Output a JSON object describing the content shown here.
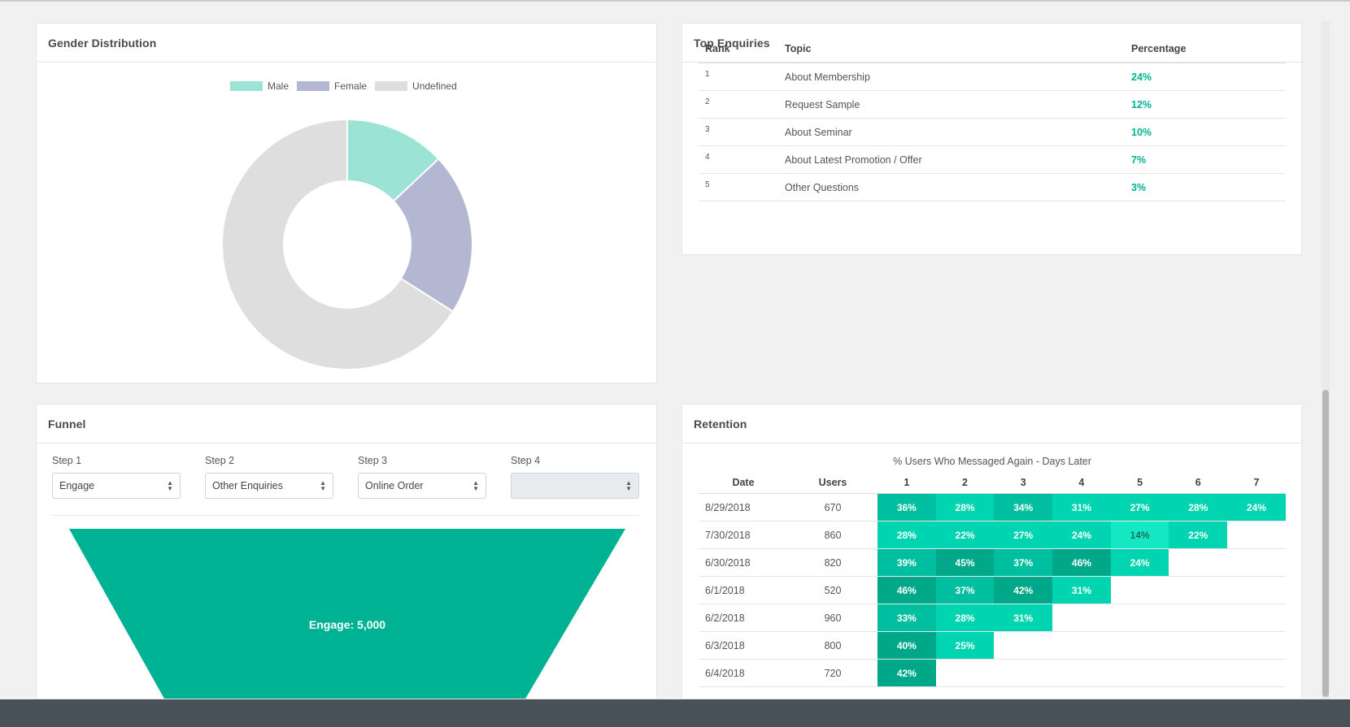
{
  "gender": {
    "title": "Gender Distribution",
    "legend": [
      {
        "label": "Male",
        "color": "#9be3d4"
      },
      {
        "label": "Female",
        "color": "#b3b7d1"
      },
      {
        "label": "Undefined",
        "color": "#dedede"
      }
    ],
    "chart_data": {
      "type": "pie",
      "categories": [
        "Male",
        "Female",
        "Undefined"
      ],
      "values": [
        13,
        21,
        66
      ]
    }
  },
  "enquiries": {
    "title": "Top Enquiries",
    "headers": {
      "rank": "Rank",
      "topic": "Topic",
      "percentage": "Percentage"
    },
    "rows": [
      {
        "rank": "1",
        "topic": "About Membership",
        "percentage": "24%"
      },
      {
        "rank": "2",
        "topic": "Request Sample",
        "percentage": "12%"
      },
      {
        "rank": "3",
        "topic": "About Seminar",
        "percentage": "10%"
      },
      {
        "rank": "4",
        "topic": "About Latest Promotion / Offer",
        "percentage": "7%"
      },
      {
        "rank": "5",
        "topic": "Other Questions",
        "percentage": "3%"
      }
    ]
  },
  "funnel": {
    "title": "Funnel",
    "steps": [
      {
        "label": "Step 1",
        "value": "Engage"
      },
      {
        "label": "Step 2",
        "value": "Other Enquiries"
      },
      {
        "label": "Step 3",
        "value": "Online Order"
      },
      {
        "label": "Step 4",
        "value": ""
      }
    ],
    "stage_label": "Engage: 5,000",
    "color": "#00b294"
  },
  "retention": {
    "title": "Retention",
    "subtitle": "% Users Who Messaged Again - Days Later",
    "headers": {
      "date": "Date",
      "users": "Users",
      "days": [
        "1",
        "2",
        "3",
        "4",
        "5",
        "6",
        "7"
      ]
    },
    "rows": [
      {
        "date": "8/29/2018",
        "users": "670",
        "values": [
          "36%",
          "28%",
          "34%",
          "31%",
          "27%",
          "28%",
          "24%"
        ]
      },
      {
        "date": "7/30/2018",
        "users": "860",
        "values": [
          "28%",
          "22%",
          "27%",
          "24%",
          "14%",
          "22%"
        ]
      },
      {
        "date": "6/30/2018",
        "users": "820",
        "values": [
          "39%",
          "45%",
          "37%",
          "46%",
          "24%"
        ]
      },
      {
        "date": "6/1/2018",
        "users": "520",
        "values": [
          "46%",
          "37%",
          "42%",
          "31%"
        ]
      },
      {
        "date": "6/2/2018",
        "users": "960",
        "values": [
          "33%",
          "28%",
          "31%"
        ]
      },
      {
        "date": "6/3/2018",
        "users": "800",
        "values": [
          "40%",
          "25%"
        ]
      },
      {
        "date": "6/4/2018",
        "users": "720",
        "values": [
          "42%"
        ]
      }
    ],
    "colors": {
      "low": "#14e8c3",
      "mid": "#00d4b0",
      "high": "#00bea0",
      "top": "#00a88a"
    }
  }
}
